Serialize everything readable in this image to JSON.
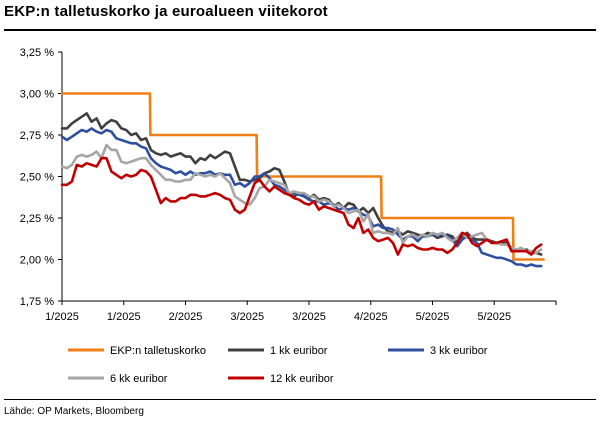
{
  "title": "EKP:n talletuskorko ja euroalueen viitekorot",
  "source": "Lähde: OP Markets, Bloomberg",
  "chart_data": {
    "type": "line",
    "title": "EKP:n talletuskorko ja euroalueen viitekorot",
    "xlabel": "",
    "ylabel": "",
    "ylim": [
      1.75,
      3.25
    ],
    "yticks": [
      1.75,
      2.0,
      2.25,
      2.5,
      2.75,
      3.0,
      3.25
    ],
    "ytick_labels": [
      "1,75 %",
      "2,00 %",
      "2,25 %",
      "2,50 %",
      "2,75 %",
      "3,00 %",
      "3,25 %"
    ],
    "xlim": [
      0,
      100
    ],
    "xticks": [
      0,
      12.5,
      25,
      37.5,
      50,
      62.5,
      75,
      87.5,
      100
    ],
    "xtick_labels": [
      "1/2025",
      "1/2025",
      "2/2025",
      "3/2025",
      "3/2025",
      "4/2025",
      "5/2025",
      "5/2025",
      ""
    ],
    "grid": false,
    "legend_position": "bottom",
    "series": [
      {
        "name": "EKP:n talletuskorko",
        "color": "#f07f16",
        "step": true,
        "x": [
          0,
          17.8,
          17.9,
          39.4,
          39.5,
          64.6,
          64.7,
          91.3,
          91.4,
          97.5
        ],
        "values": [
          3.0,
          3.0,
          2.75,
          2.75,
          2.5,
          2.5,
          2.25,
          2.25,
          2.0,
          2.0
        ]
      },
      {
        "name": "1 kk euribor",
        "color": "#404040",
        "x": [
          0,
          1,
          2,
          3,
          4,
          5,
          6,
          7,
          8,
          9,
          10,
          11,
          12,
          13,
          14,
          15,
          16,
          17,
          18,
          19,
          20,
          21,
          22,
          23,
          24,
          25,
          26,
          27,
          28,
          29,
          30,
          31,
          32,
          33,
          34,
          35,
          36,
          37,
          38,
          39,
          40,
          41,
          42,
          43,
          44,
          45,
          46,
          47,
          48,
          49,
          50,
          51,
          52,
          53,
          54,
          55,
          56,
          57,
          58,
          59,
          60,
          61,
          62,
          63,
          64,
          65,
          66,
          67,
          68,
          69,
          70,
          71,
          72,
          73,
          74,
          75,
          76,
          77,
          78,
          79,
          80,
          81,
          82,
          83,
          84,
          85,
          86,
          87,
          88,
          89,
          90,
          91,
          92,
          93,
          94,
          95,
          96,
          97
        ],
        "values": [
          2.79,
          2.79,
          2.82,
          2.84,
          2.86,
          2.88,
          2.83,
          2.85,
          2.79,
          2.82,
          2.84,
          2.83,
          2.79,
          2.78,
          2.75,
          2.76,
          2.72,
          2.73,
          2.66,
          2.64,
          2.63,
          2.64,
          2.62,
          2.63,
          2.64,
          2.62,
          2.62,
          2.58,
          2.61,
          2.6,
          2.63,
          2.61,
          2.63,
          2.65,
          2.64,
          2.56,
          2.48,
          2.48,
          2.47,
          2.48,
          2.49,
          2.52,
          2.53,
          2.55,
          2.54,
          2.47,
          2.39,
          2.38,
          2.4,
          2.39,
          2.37,
          2.39,
          2.36,
          2.37,
          2.36,
          2.32,
          2.34,
          2.31,
          2.34,
          2.33,
          2.29,
          2.31,
          2.28,
          2.31,
          2.25,
          2.2,
          2.17,
          2.16,
          2.17,
          2.15,
          2.17,
          2.16,
          2.15,
          2.14,
          2.16,
          2.15,
          2.13,
          2.14,
          2.15,
          2.14,
          2.1,
          2.14,
          2.16,
          2.13,
          2.12,
          2.12,
          2.12,
          2.11,
          2.1,
          2.1,
          2.1,
          2.07,
          2.05,
          2.05,
          2.06,
          2.04,
          2.04,
          2.03
        ]
      },
      {
        "name": "3 kk euribor",
        "color": "#2f4fa0",
        "x": [
          0,
          1,
          2,
          3,
          4,
          5,
          6,
          7,
          8,
          9,
          10,
          11,
          12,
          13,
          14,
          15,
          16,
          17,
          18,
          19,
          20,
          21,
          22,
          23,
          24,
          25,
          26,
          27,
          28,
          29,
          30,
          31,
          32,
          33,
          34,
          35,
          36,
          37,
          38,
          39,
          40,
          41,
          42,
          43,
          44,
          45,
          46,
          47,
          48,
          49,
          50,
          51,
          52,
          53,
          54,
          55,
          56,
          57,
          58,
          59,
          60,
          61,
          62,
          63,
          64,
          65,
          66,
          67,
          68,
          69,
          70,
          71,
          72,
          73,
          74,
          75,
          76,
          77,
          78,
          79,
          80,
          81,
          82,
          83,
          84,
          85,
          86,
          87,
          88,
          89,
          90,
          91,
          92,
          93,
          94,
          95,
          96,
          97
        ],
        "values": [
          2.74,
          2.72,
          2.74,
          2.76,
          2.78,
          2.77,
          2.79,
          2.77,
          2.76,
          2.78,
          2.77,
          2.73,
          2.72,
          2.71,
          2.7,
          2.7,
          2.68,
          2.67,
          2.61,
          2.58,
          2.56,
          2.55,
          2.54,
          2.52,
          2.53,
          2.51,
          2.53,
          2.51,
          2.52,
          2.52,
          2.53,
          2.51,
          2.52,
          2.51,
          2.51,
          2.45,
          2.46,
          2.44,
          2.46,
          2.5,
          2.5,
          2.52,
          2.49,
          2.45,
          2.44,
          2.42,
          2.4,
          2.4,
          2.39,
          2.38,
          2.36,
          2.35,
          2.35,
          2.33,
          2.34,
          2.33,
          2.3,
          2.31,
          2.3,
          2.31,
          2.29,
          2.27,
          2.26,
          2.2,
          2.21,
          2.19,
          2.19,
          2.18,
          2.15,
          2.12,
          2.14,
          2.14,
          2.11,
          2.14,
          2.14,
          2.15,
          2.15,
          2.15,
          2.14,
          2.12,
          2.08,
          2.12,
          2.14,
          2.12,
          2.1,
          2.04,
          2.03,
          2.02,
          2.01,
          2.01,
          2.0,
          1.99,
          1.97,
          1.97,
          1.96,
          1.97,
          1.96,
          1.96
        ]
      },
      {
        "name": "6 kk euribor",
        "color": "#a6a6a6",
        "x": [
          0,
          1,
          2,
          3,
          4,
          5,
          6,
          7,
          8,
          9,
          10,
          11,
          12,
          13,
          14,
          15,
          16,
          17,
          18,
          19,
          20,
          21,
          22,
          23,
          24,
          25,
          26,
          27,
          28,
          29,
          30,
          31,
          32,
          33,
          34,
          35,
          36,
          37,
          38,
          39,
          40,
          41,
          42,
          43,
          44,
          45,
          46,
          47,
          48,
          49,
          50,
          51,
          52,
          53,
          54,
          55,
          56,
          57,
          58,
          59,
          60,
          61,
          62,
          63,
          64,
          65,
          66,
          67,
          68,
          69,
          70,
          71,
          72,
          73,
          74,
          75,
          76,
          77,
          78,
          79,
          80,
          81,
          82,
          83,
          84,
          85,
          86,
          87,
          88,
          89,
          90,
          91,
          92,
          93,
          94,
          95,
          96,
          97
        ],
        "values": [
          2.56,
          2.55,
          2.57,
          2.62,
          2.63,
          2.62,
          2.63,
          2.65,
          2.61,
          2.69,
          2.66,
          2.66,
          2.59,
          2.58,
          2.59,
          2.6,
          2.61,
          2.61,
          2.57,
          2.54,
          2.51,
          2.48,
          2.48,
          2.47,
          2.47,
          2.48,
          2.48,
          2.52,
          2.51,
          2.5,
          2.51,
          2.5,
          2.52,
          2.49,
          2.46,
          2.38,
          2.36,
          2.34,
          2.33,
          2.37,
          2.43,
          2.44,
          2.48,
          2.47,
          2.46,
          2.45,
          2.4,
          2.41,
          2.4,
          2.4,
          2.38,
          2.38,
          2.35,
          2.36,
          2.35,
          2.32,
          2.33,
          2.31,
          2.28,
          2.29,
          2.3,
          2.23,
          2.27,
          2.16,
          2.17,
          2.16,
          2.16,
          2.15,
          2.19,
          2.1,
          2.14,
          2.15,
          2.13,
          2.15,
          2.14,
          2.16,
          2.15,
          2.16,
          2.13,
          2.11,
          2.13,
          2.16,
          2.13,
          2.14,
          2.15,
          2.16,
          2.12,
          2.1,
          2.1,
          2.09,
          2.09,
          2.07,
          2.06,
          2.07,
          2.05,
          2.05,
          2.04,
          2.06
        ]
      },
      {
        "name": "12 kk euribor",
        "color": "#c00000",
        "x": [
          0,
          1,
          2,
          3,
          4,
          5,
          6,
          7,
          8,
          9,
          10,
          11,
          12,
          13,
          14,
          15,
          16,
          17,
          18,
          19,
          20,
          21,
          22,
          23,
          24,
          25,
          26,
          27,
          28,
          29,
          30,
          31,
          32,
          33,
          34,
          35,
          36,
          37,
          38,
          39,
          40,
          41,
          42,
          43,
          44,
          45,
          46,
          47,
          48,
          49,
          50,
          51,
          52,
          53,
          54,
          55,
          56,
          57,
          58,
          59,
          60,
          61,
          62,
          63,
          64,
          65,
          66,
          67,
          68,
          69,
          70,
          71,
          72,
          73,
          74,
          75,
          76,
          77,
          78,
          79,
          80,
          81,
          82,
          83,
          84,
          85,
          86,
          87,
          88,
          89,
          90,
          91,
          92,
          93,
          94,
          95,
          96,
          97
        ],
        "values": [
          2.45,
          2.45,
          2.47,
          2.57,
          2.56,
          2.58,
          2.57,
          2.56,
          2.61,
          2.61,
          2.53,
          2.51,
          2.49,
          2.51,
          2.5,
          2.51,
          2.54,
          2.53,
          2.5,
          2.42,
          2.34,
          2.37,
          2.35,
          2.35,
          2.37,
          2.37,
          2.39,
          2.39,
          2.38,
          2.38,
          2.39,
          2.4,
          2.39,
          2.37,
          2.36,
          2.3,
          2.28,
          2.3,
          2.38,
          2.46,
          2.48,
          2.44,
          2.41,
          2.44,
          2.42,
          2.4,
          2.39,
          2.37,
          2.36,
          2.34,
          2.33,
          2.35,
          2.3,
          2.32,
          2.31,
          2.3,
          2.29,
          2.28,
          2.21,
          2.19,
          2.25,
          2.16,
          2.18,
          2.13,
          2.11,
          2.12,
          2.13,
          2.1,
          2.03,
          2.09,
          2.08,
          2.09,
          2.07,
          2.06,
          2.06,
          2.07,
          2.06,
          2.06,
          2.04,
          2.06,
          2.1,
          2.16,
          2.15,
          2.1,
          2.08,
          2.1,
          2.12,
          2.1,
          2.1,
          2.11,
          2.12,
          2.05,
          2.05,
          2.05,
          2.05,
          2.03,
          2.07,
          2.09
        ]
      }
    ]
  }
}
